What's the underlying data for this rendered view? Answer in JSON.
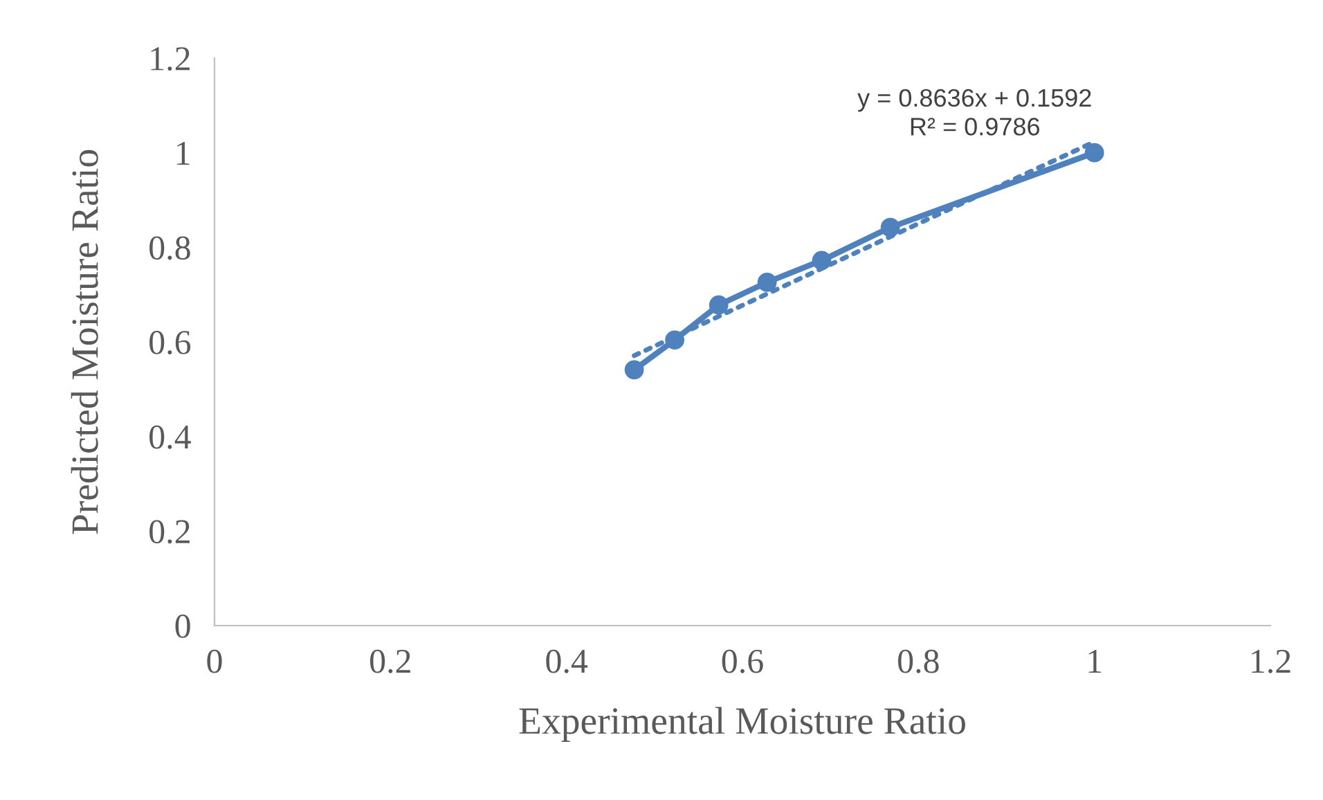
{
  "chart_data": {
    "type": "line",
    "xlabel": "Experimental Moisture Ratio",
    "ylabel": "Predicted Moisture Ratio",
    "xlim": [
      0,
      1.2
    ],
    "xticks": [
      0,
      0.2,
      0.4,
      0.6,
      0.8,
      1,
      1.2
    ],
    "ylim": [
      0,
      1.2
    ],
    "yticks": [
      0,
      0.2,
      0.4,
      0.6,
      0.8,
      1,
      1.2
    ],
    "grid": false,
    "legend": false,
    "series": [
      {
        "color": "#4f81bd",
        "marker": "circle",
        "line_style": "solid",
        "x": [
          0.477,
          0.523,
          0.573,
          0.628,
          0.69,
          0.768,
          1
        ],
        "values": [
          0.541,
          0.604,
          0.678,
          0.726,
          0.772,
          0.842,
          1
        ]
      },
      {
        "color": "#4f81bd",
        "marker": "none",
        "line_style": "dotted",
        "x": [
          0.477,
          1
        ],
        "values": [
          0.571,
          1.023
        ]
      }
    ],
    "annotations": [
      "y = 0.8636x + 0.1592\nR² = 0.9786"
    ]
  }
}
